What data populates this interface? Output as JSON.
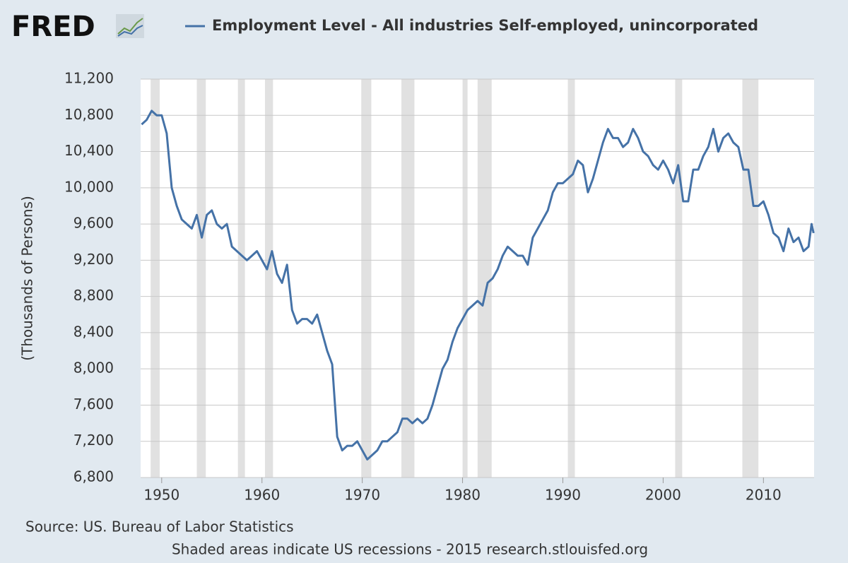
{
  "logo": "FRED",
  "chart_data": {
    "type": "line",
    "ylabel": "(Thousands of Persons)",
    "source": "Source: US. Bureau of Labor Statistics",
    "footer": "Shaded areas indicate US recessions - 2015 research.stlouisfed.org",
    "xlim": [
      1947.9,
      2015.05
    ],
    "ylim": [
      6800,
      11200
    ],
    "xticks": [
      1950,
      1960,
      1970,
      1980,
      1990,
      2000,
      2010
    ],
    "yticks": [
      {
        "value": 6800,
        "label": "6,800"
      },
      {
        "value": 7200,
        "label": "7,200"
      },
      {
        "value": 7600,
        "label": "7,600"
      },
      {
        "value": 8000,
        "label": "8,000"
      },
      {
        "value": 8400,
        "label": "8,400"
      },
      {
        "value": 8800,
        "label": "8,800"
      },
      {
        "value": 9200,
        "label": "9,200"
      },
      {
        "value": 9600,
        "label": "9,600"
      },
      {
        "value": 10000,
        "label": "10,000"
      },
      {
        "value": 10400,
        "label": "10,400"
      },
      {
        "value": 10800,
        "label": "10,800"
      },
      {
        "value": 11200,
        "label": "11,200"
      }
    ],
    "grid": true,
    "recession_color": "#e1e1e1",
    "recessions": [
      [
        1948.9,
        1949.8
      ],
      [
        1953.5,
        1954.4
      ],
      [
        1957.6,
        1958.3
      ],
      [
        1960.3,
        1961.1
      ],
      [
        1969.9,
        1970.9
      ],
      [
        1973.9,
        1975.2
      ],
      [
        1980.0,
        1980.5
      ],
      [
        1981.5,
        1982.9
      ],
      [
        1990.5,
        1991.2
      ],
      [
        2001.2,
        2001.9
      ],
      [
        2007.9,
        2009.5
      ]
    ],
    "x": [
      1948,
      1948.5,
      1949,
      1949.5,
      1950,
      1950.5,
      1951,
      1951.5,
      1952,
      1952.5,
      1953,
      1953.5,
      1954,
      1954.5,
      1955,
      1955.5,
      1956,
      1956.5,
      1957,
      1957.5,
      1958,
      1958.5,
      1959,
      1959.5,
      1960,
      1960.5,
      1961,
      1961.5,
      1962,
      1962.5,
      1963,
      1963.5,
      1964,
      1964.5,
      1965,
      1965.5,
      1966,
      1966.5,
      1967,
      1967.5,
      1968,
      1968.5,
      1969,
      1969.5,
      1970,
      1970.5,
      1971,
      1971.5,
      1972,
      1972.5,
      1973,
      1973.5,
      1974,
      1974.5,
      1975,
      1975.5,
      1976,
      1976.5,
      1977,
      1977.5,
      1978,
      1978.5,
      1979,
      1979.5,
      1980,
      1980.5,
      1981,
      1981.5,
      1982,
      1982.5,
      1983,
      1983.5,
      1984,
      1984.5,
      1985,
      1985.5,
      1986,
      1986.5,
      1987,
      1987.5,
      1988,
      1988.5,
      1989,
      1989.5,
      1990,
      1990.5,
      1991,
      1991.5,
      1992,
      1992.5,
      1993,
      1993.5,
      1994,
      1994.5,
      1995,
      1995.5,
      1996,
      1996.5,
      1997,
      1997.5,
      1998,
      1998.5,
      1999,
      1999.5,
      2000,
      2000.5,
      2001,
      2001.5,
      2002,
      2002.5,
      2003,
      2003.5,
      2004,
      2004.5,
      2005,
      2005.5,
      2006,
      2006.5,
      2007,
      2007.5,
      2008,
      2008.5,
      2009,
      2009.5,
      2010,
      2010.5,
      2011,
      2011.5,
      2012,
      2012.5,
      2013,
      2013.5,
      2014,
      2014.5,
      2014.8,
      2015
    ],
    "series": [
      {
        "name": "Employment Level - All industries Self-employed, unincorporated",
        "color": "#4572a7",
        "values": [
          10700,
          10750,
          10850,
          10800,
          10800,
          10600,
          10000,
          9800,
          9650,
          9600,
          9550,
          9700,
          9450,
          9700,
          9750,
          9600,
          9550,
          9600,
          9350,
          9300,
          9250,
          9200,
          9250,
          9300,
          9200,
          9100,
          9300,
          9050,
          8950,
          9150,
          8650,
          8500,
          8550,
          8550,
          8500,
          8600,
          8400,
          8200,
          8050,
          7250,
          7100,
          7150,
          7150,
          7200,
          7100,
          7000,
          7050,
          7100,
          7200,
          7200,
          7250,
          7300,
          7450,
          7450,
          7400,
          7450,
          7400,
          7450,
          7600,
          7800,
          8000,
          8100,
          8300,
          8450,
          8550,
          8650,
          8700,
          8750,
          8700,
          8950,
          9000,
          9100,
          9250,
          9350,
          9300,
          9250,
          9250,
          9150,
          9450,
          9550,
          9650,
          9750,
          9950,
          10050,
          10050,
          10100,
          10150,
          10300,
          10250,
          9950,
          10100,
          10300,
          10500,
          10650,
          10550,
          10550,
          10450,
          10500,
          10650,
          10550,
          10400,
          10350,
          10250,
          10200,
          10300,
          10200,
          10050,
          10250,
          9850,
          9850,
          10200,
          10200,
          10350,
          10450,
          10650,
          10400,
          10550,
          10600,
          10500,
          10450,
          10200,
          10200,
          9800,
          9800,
          9850,
          9700,
          9500,
          9450,
          9300,
          9550,
          9400,
          9450,
          9300,
          9350,
          9600,
          9500
        ]
      }
    ]
  }
}
